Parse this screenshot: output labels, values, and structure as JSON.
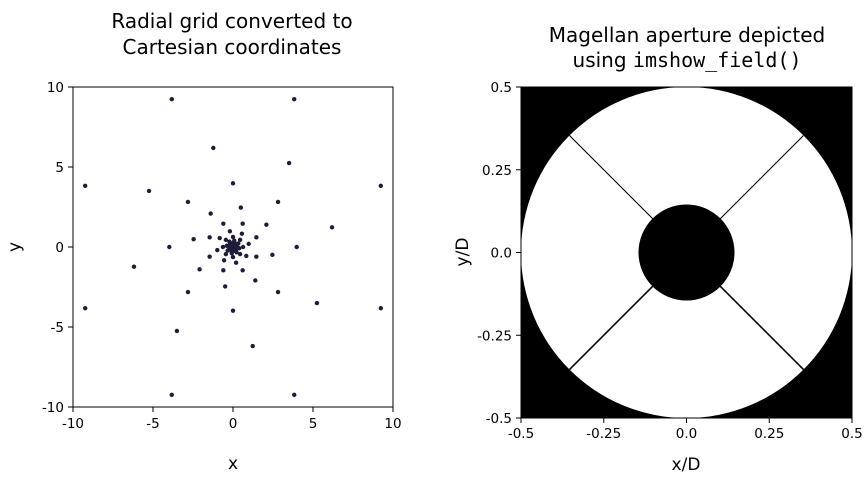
{
  "chart_data": [
    {
      "type": "scatter",
      "title": [
        "Radial grid converted to",
        "Cartesian coordinates"
      ],
      "xlabel": "x",
      "ylabel": "y",
      "xlim": [
        -10,
        10
      ],
      "ylim": [
        -10,
        10
      ],
      "xticks": [
        -10,
        -5,
        0,
        5,
        10
      ],
      "yticks": [
        -10,
        -5,
        0,
        5,
        10
      ],
      "xtick_labels": [
        "-10",
        "-5",
        "0",
        "5",
        "10"
      ],
      "ytick_labels": [
        "-10",
        "-5",
        "0",
        "5",
        "10"
      ],
      "grid": false,
      "marker_color": "#1f1c3a",
      "radii": [
        0.1,
        0.16,
        0.25,
        0.4,
        0.63,
        1.0,
        1.58,
        2.51,
        3.98,
        6.31,
        10.0
      ],
      "ring_points": 8,
      "angle_offset_per_ring_deg": 11.25
    },
    {
      "type": "heatmap",
      "title": [
        "Magellan aperture depicted",
        "using "
      ],
      "title_code": "imshow_field()",
      "xlabel": "x/D",
      "ylabel": "y/D",
      "xlim": [
        -0.5,
        0.5
      ],
      "ylim": [
        -0.5,
        0.5
      ],
      "xticks": [
        -0.5,
        -0.25,
        0.0,
        0.25,
        0.5
      ],
      "yticks": [
        -0.5,
        -0.25,
        0.0,
        0.25,
        0.5
      ],
      "xtick_labels": [
        "-0.5",
        "-0.25",
        "0.0",
        "0.25",
        "0.5"
      ],
      "ytick_labels": [
        "-0.5",
        "-0.25",
        "0.0",
        "0.25",
        "0.5"
      ],
      "grid": false,
      "colormap": "gray",
      "aperture": {
        "outer_diameter": 1.0,
        "central_obscuration_diameter": 0.29,
        "spider_angles_deg": [
          45,
          135,
          225,
          315
        ]
      }
    }
  ]
}
